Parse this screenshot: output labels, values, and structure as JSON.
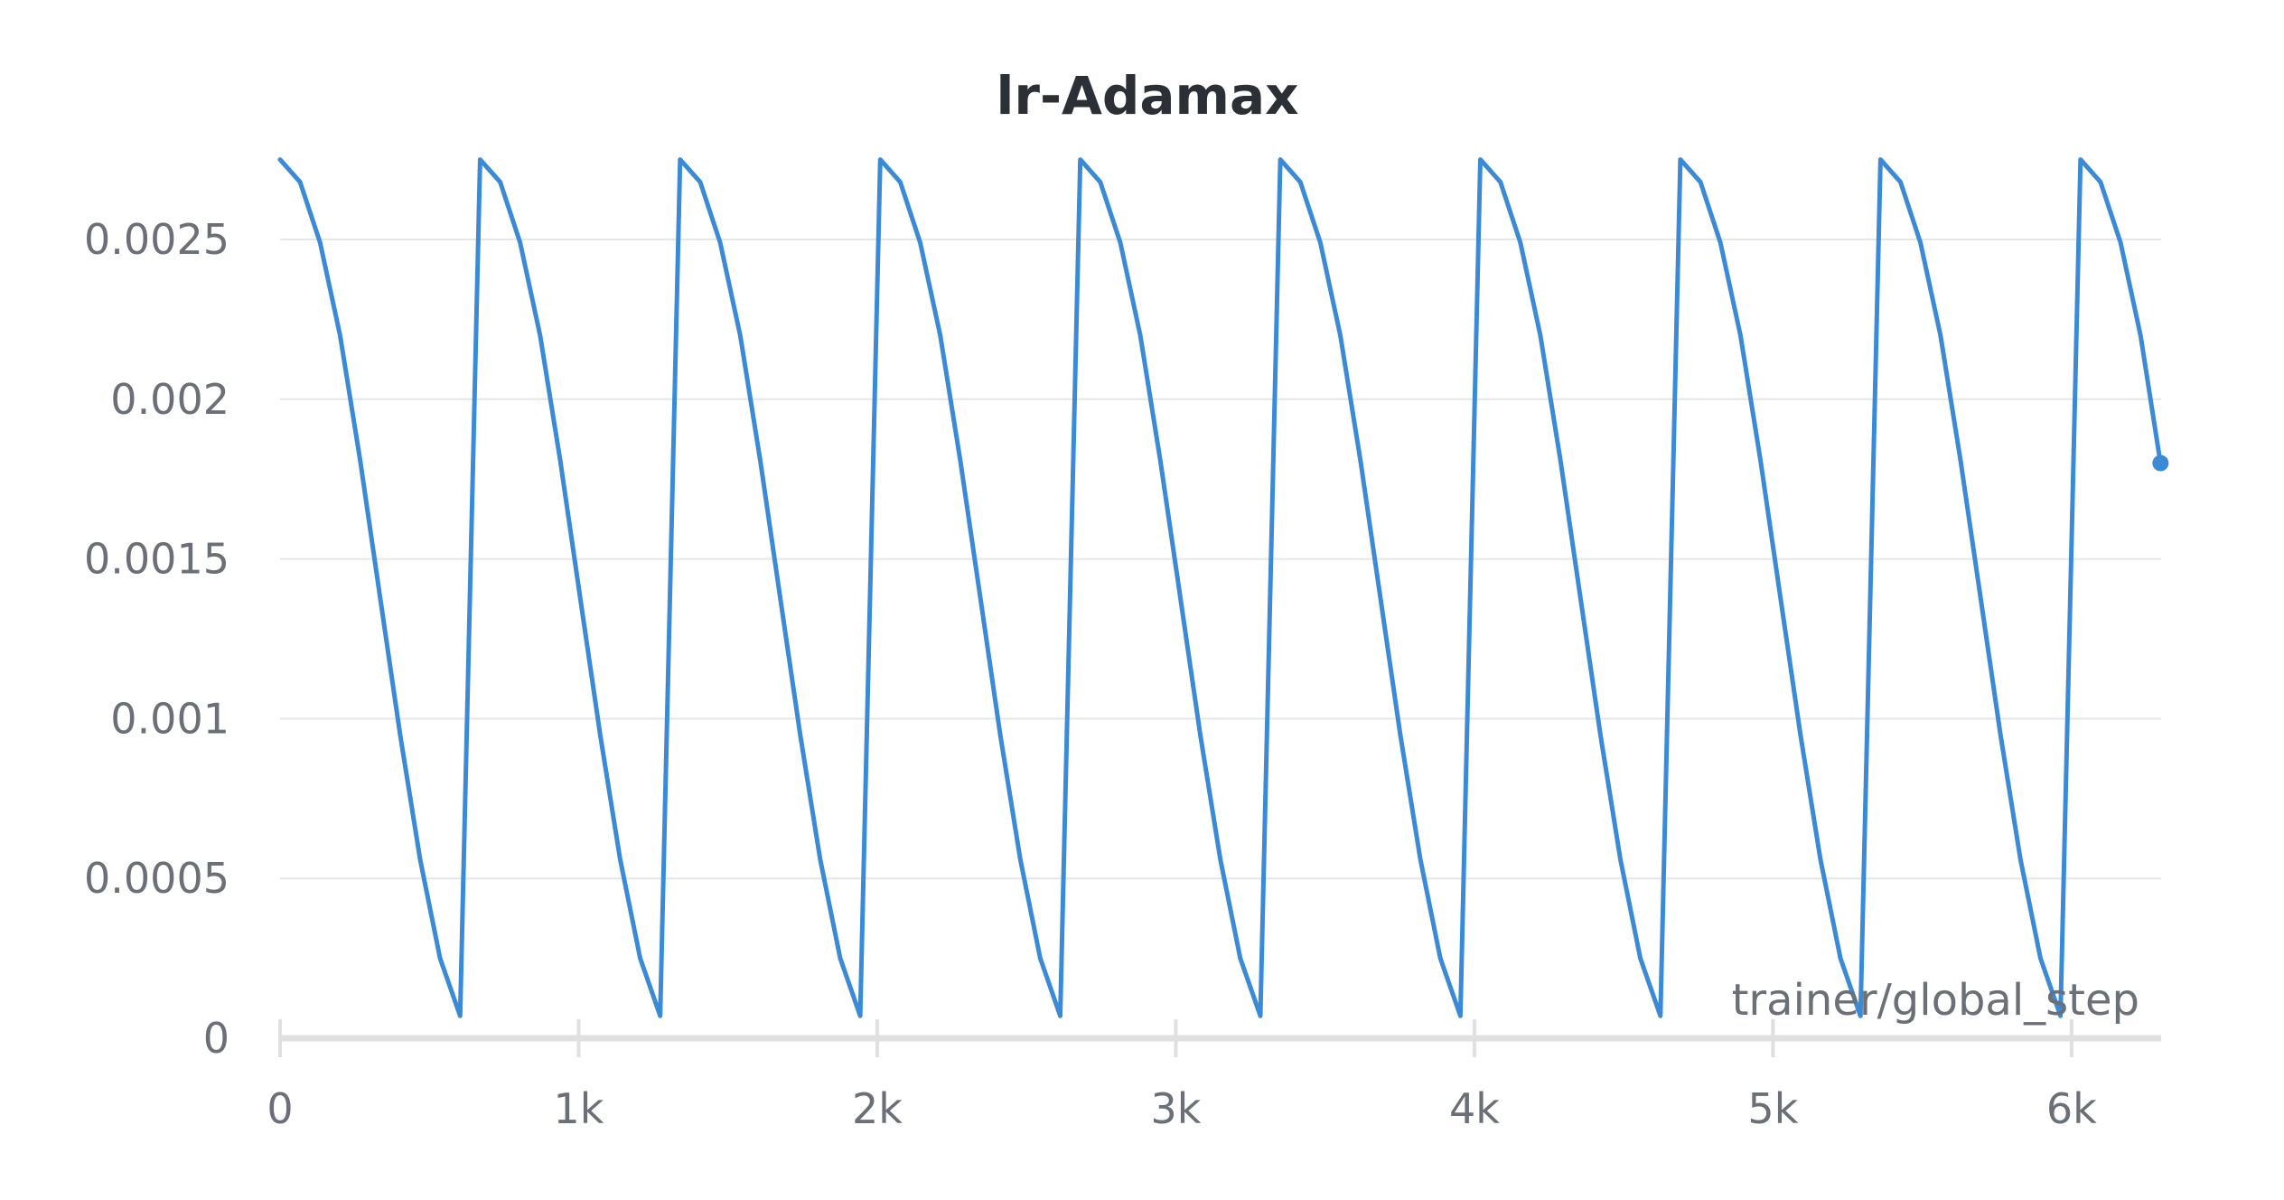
{
  "chart_data": {
    "type": "line",
    "title": "lr-Adamax",
    "xlabel": "trainer/global_step",
    "ylabel": "",
    "xlim": [
      0,
      6300
    ],
    "ylim": [
      0,
      0.00275
    ],
    "x_ticks": [
      0,
      1000,
      2000,
      3000,
      4000,
      5000,
      6000
    ],
    "x_tick_labels": [
      "0",
      "1k",
      "2k",
      "3k",
      "4k",
      "5k",
      "6k"
    ],
    "y_ticks": [
      0,
      0.0005,
      0.001,
      0.0015,
      0.002,
      0.0025
    ],
    "y_tick_labels": [
      "0",
      "0.0005",
      "0.001",
      "0.0015",
      "0.002",
      "0.0025"
    ],
    "grid": true,
    "legend": "none",
    "colors": {
      "line": "#3a8ad8",
      "grid": "#e6e6e6",
      "axis": "#e0e0e0",
      "text": "#6b6f78",
      "title": "#2b2f36"
    },
    "series": [
      {
        "x": [
          0,
          67,
          134,
          201,
          268,
          335,
          402,
          469,
          536,
          603,
          670,
          737,
          804,
          871,
          938,
          1005,
          1072,
          1139,
          1206,
          1273,
          1340,
          1407,
          1474,
          1541,
          1608,
          1675,
          1742,
          1809,
          1876,
          1943,
          2010,
          2077,
          2144,
          2211,
          2278,
          2345,
          2412,
          2479,
          2546,
          2613,
          2680,
          2747,
          2814,
          2881,
          2948,
          3015,
          3082,
          3149,
          3216,
          3283,
          3350,
          3417,
          3484,
          3551,
          3618,
          3685,
          3752,
          3819,
          3886,
          3953,
          4020,
          4087,
          4154,
          4221,
          4288,
          4355,
          4422,
          4489,
          4556,
          4623,
          4690,
          4757,
          4824,
          4891,
          4958,
          5025,
          5092,
          5159,
          5226,
          5293,
          5360,
          5427,
          5494,
          5561,
          5628,
          5695,
          5762,
          5829,
          5896,
          5963,
          6030,
          6097,
          6164,
          6231,
          6298
        ],
        "y": [
          0.00275,
          0.00268,
          0.00249,
          0.0022,
          0.00181,
          0.00138,
          0.00095,
          0.00056,
          0.00025,
          7e-05,
          0.00275,
          0.00268,
          0.00249,
          0.0022,
          0.00181,
          0.00138,
          0.00095,
          0.00056,
          0.00025,
          7e-05,
          0.00275,
          0.00268,
          0.00249,
          0.0022,
          0.00181,
          0.00138,
          0.00095,
          0.00056,
          0.00025,
          7e-05,
          0.00275,
          0.00268,
          0.00249,
          0.0022,
          0.00181,
          0.00138,
          0.00095,
          0.00056,
          0.00025,
          7e-05,
          0.00275,
          0.00268,
          0.00249,
          0.0022,
          0.00181,
          0.00138,
          0.00095,
          0.00056,
          0.00025,
          7e-05,
          0.00275,
          0.00268,
          0.00249,
          0.0022,
          0.00181,
          0.00138,
          0.00095,
          0.00056,
          0.00025,
          7e-05,
          0.00275,
          0.00268,
          0.00249,
          0.0022,
          0.00181,
          0.00138,
          0.00095,
          0.00056,
          0.00025,
          7e-05,
          0.00275,
          0.00268,
          0.00249,
          0.0022,
          0.00181,
          0.00138,
          0.00095,
          0.00056,
          0.00025,
          7e-05,
          0.00275,
          0.00268,
          0.00249,
          0.0022,
          0.00181,
          0.00138,
          0.00095,
          0.00056,
          0.00025,
          7e-05,
          0.00275,
          0.00268,
          0.00249,
          0.0022,
          0.0018
        ]
      }
    ]
  }
}
